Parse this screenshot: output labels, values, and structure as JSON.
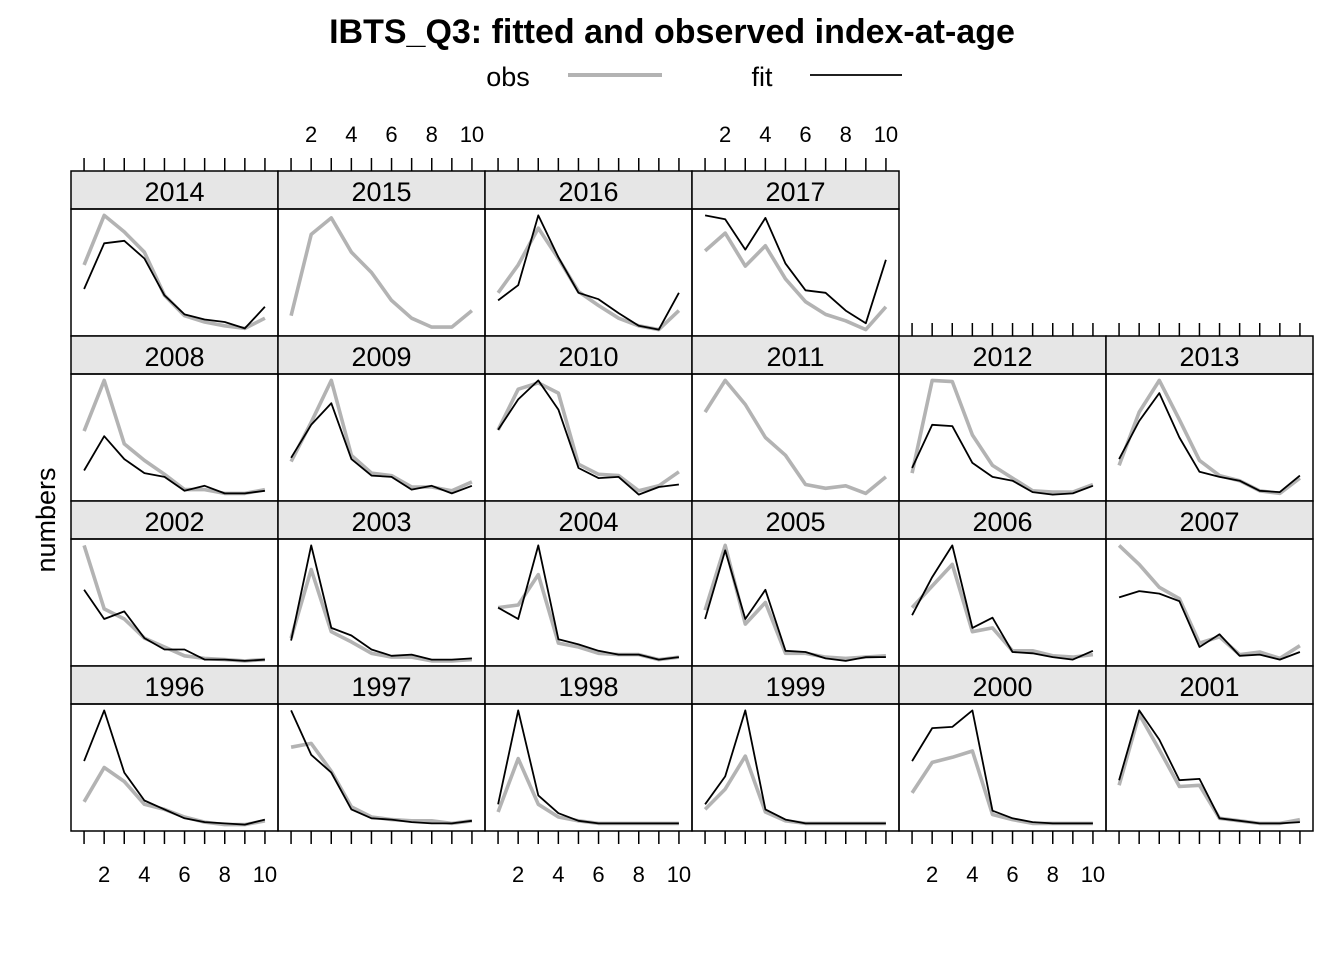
{
  "chart_data": {
    "type": "line",
    "title": "IBTS_Q3: fitted and observed index-at-age",
    "ylabel": "numbers",
    "xlabel": "",
    "x": [
      1,
      2,
      3,
      4,
      5,
      6,
      7,
      8,
      9,
      10
    ],
    "x_ticks": [
      "2",
      "4",
      "6",
      "8",
      "10"
    ],
    "x_tick_values": [
      2,
      4,
      6,
      8,
      10
    ],
    "xlim": [
      0.35,
      10.65
    ],
    "ylim": [
      0,
      1
    ],
    "colors": {
      "obs": "#b3b3b3",
      "fit": "#000000",
      "strip": "#e6e6e6"
    },
    "legend": {
      "placement": "top",
      "entries": [
        {
          "label": "obs",
          "color": "#b3b3b3"
        },
        {
          "label": "fit",
          "color": "#000000"
        }
      ]
    },
    "panels": [
      {
        "year": "2014",
        "row": 0,
        "col": 0,
        "obs": [
          0.56,
          0.95,
          0.82,
          0.66,
          0.32,
          0.16,
          0.11,
          0.08,
          0.06,
          0.14
        ],
        "fit": [
          0.37,
          0.73,
          0.75,
          0.61,
          0.32,
          0.17,
          0.13,
          0.11,
          0.06,
          0.23
        ]
      },
      {
        "year": "2015",
        "row": 0,
        "col": 1,
        "obs": [
          0.16,
          0.8,
          0.93,
          0.66,
          0.5,
          0.28,
          0.14,
          0.07,
          0.07,
          0.2
        ]
      },
      {
        "year": "2016",
        "row": 0,
        "col": 2,
        "obs": [
          0.34,
          0.56,
          0.85,
          0.61,
          0.35,
          0.24,
          0.14,
          0.08,
          0.05,
          0.2
        ],
        "fit": [
          0.28,
          0.4,
          0.95,
          0.62,
          0.34,
          0.29,
          0.18,
          0.08,
          0.05,
          0.34
        ]
      },
      {
        "year": "2017",
        "row": 0,
        "col": 3,
        "obs": [
          0.67,
          0.81,
          0.55,
          0.71,
          0.45,
          0.27,
          0.17,
          0.12,
          0.05,
          0.23
        ],
        "fit": [
          0.95,
          0.92,
          0.68,
          0.93,
          0.57,
          0.36,
          0.34,
          0.2,
          0.1,
          0.6
        ]
      },
      {
        "year": "2008",
        "row": 1,
        "col": 0,
        "obs": [
          0.55,
          0.95,
          0.45,
          0.32,
          0.21,
          0.09,
          0.09,
          0.06,
          0.06,
          0.09
        ],
        "fit": [
          0.24,
          0.51,
          0.33,
          0.22,
          0.19,
          0.08,
          0.12,
          0.06,
          0.06,
          0.08
        ]
      },
      {
        "year": "2009",
        "row": 1,
        "col": 1,
        "obs": [
          0.31,
          0.62,
          0.95,
          0.36,
          0.22,
          0.2,
          0.11,
          0.11,
          0.08,
          0.15
        ],
        "fit": [
          0.34,
          0.6,
          0.77,
          0.33,
          0.2,
          0.19,
          0.09,
          0.12,
          0.06,
          0.12
        ]
      },
      {
        "year": "2010",
        "row": 1,
        "col": 2,
        "obs": [
          0.56,
          0.88,
          0.93,
          0.85,
          0.29,
          0.21,
          0.2,
          0.08,
          0.12,
          0.23
        ],
        "fit": [
          0.56,
          0.8,
          0.95,
          0.72,
          0.26,
          0.18,
          0.19,
          0.05,
          0.11,
          0.13
        ]
      },
      {
        "year": "2011",
        "row": 1,
        "col": 3,
        "obs": [
          0.7,
          0.95,
          0.76,
          0.5,
          0.36,
          0.13,
          0.1,
          0.12,
          0.06,
          0.19
        ]
      },
      {
        "year": "2012",
        "row": 1,
        "col": 4,
        "obs": [
          0.22,
          0.95,
          0.94,
          0.52,
          0.28,
          0.18,
          0.08,
          0.07,
          0.07,
          0.13
        ],
        "fit": [
          0.26,
          0.6,
          0.59,
          0.3,
          0.19,
          0.16,
          0.07,
          0.05,
          0.06,
          0.12
        ]
      },
      {
        "year": "2013",
        "row": 1,
        "col": 5,
        "obs": [
          0.28,
          0.7,
          0.95,
          0.64,
          0.32,
          0.2,
          0.16,
          0.08,
          0.06,
          0.18
        ],
        "fit": [
          0.33,
          0.63,
          0.85,
          0.5,
          0.23,
          0.19,
          0.16,
          0.08,
          0.07,
          0.2
        ]
      },
      {
        "year": "2002",
        "row": 2,
        "col": 0,
        "obs": [
          0.95,
          0.45,
          0.37,
          0.22,
          0.15,
          0.08,
          0.06,
          0.05,
          0.04,
          0.05
        ],
        "fit": [
          0.6,
          0.37,
          0.43,
          0.22,
          0.13,
          0.13,
          0.05,
          0.05,
          0.04,
          0.05
        ]
      },
      {
        "year": "2003",
        "row": 2,
        "col": 1,
        "obs": [
          0.22,
          0.76,
          0.27,
          0.19,
          0.1,
          0.07,
          0.07,
          0.04,
          0.04,
          0.05
        ],
        "fit": [
          0.2,
          0.95,
          0.3,
          0.24,
          0.13,
          0.08,
          0.09,
          0.05,
          0.05,
          0.06
        ]
      },
      {
        "year": "2004",
        "row": 2,
        "col": 2,
        "obs": [
          0.46,
          0.48,
          0.72,
          0.18,
          0.15,
          0.1,
          0.09,
          0.09,
          0.05,
          0.07
        ],
        "fit": [
          0.46,
          0.37,
          0.95,
          0.21,
          0.17,
          0.12,
          0.09,
          0.09,
          0.05,
          0.07
        ]
      },
      {
        "year": "2005",
        "row": 2,
        "col": 3,
        "obs": [
          0.44,
          0.95,
          0.33,
          0.5,
          0.1,
          0.1,
          0.07,
          0.06,
          0.07,
          0.08
        ],
        "fit": [
          0.37,
          0.91,
          0.37,
          0.6,
          0.12,
          0.11,
          0.06,
          0.04,
          0.07,
          0.07
        ]
      },
      {
        "year": "2006",
        "row": 2,
        "col": 4,
        "obs": [
          0.46,
          0.63,
          0.8,
          0.27,
          0.3,
          0.12,
          0.12,
          0.08,
          0.07,
          0.09
        ],
        "fit": [
          0.4,
          0.7,
          0.95,
          0.3,
          0.38,
          0.11,
          0.1,
          0.07,
          0.05,
          0.12
        ]
      },
      {
        "year": "2007",
        "row": 2,
        "col": 5,
        "obs": [
          0.95,
          0.8,
          0.62,
          0.53,
          0.18,
          0.23,
          0.09,
          0.11,
          0.06,
          0.16
        ],
        "fit": [
          0.54,
          0.59,
          0.57,
          0.51,
          0.15,
          0.25,
          0.08,
          0.09,
          0.05,
          0.11
        ]
      },
      {
        "year": "1996",
        "row": 3,
        "col": 0,
        "obs": [
          0.23,
          0.5,
          0.39,
          0.21,
          0.17,
          0.11,
          0.07,
          0.05,
          0.05,
          0.08
        ],
        "fit": [
          0.55,
          0.95,
          0.46,
          0.24,
          0.17,
          0.1,
          0.07,
          0.06,
          0.05,
          0.09
        ]
      },
      {
        "year": "1997",
        "row": 3,
        "col": 1,
        "obs": [
          0.66,
          0.69,
          0.47,
          0.19,
          0.11,
          0.09,
          0.08,
          0.08,
          0.06,
          0.08
        ],
        "fit": [
          0.95,
          0.6,
          0.46,
          0.17,
          0.1,
          0.09,
          0.07,
          0.06,
          0.06,
          0.08
        ]
      },
      {
        "year": "1998",
        "row": 3,
        "col": 2,
        "obs": [
          0.15,
          0.57,
          0.21,
          0.11,
          0.08,
          0.06,
          0.06,
          0.06,
          0.06,
          0.06
        ],
        "fit": [
          0.21,
          0.95,
          0.28,
          0.14,
          0.08,
          0.06,
          0.06,
          0.06,
          0.06,
          0.06
        ]
      },
      {
        "year": "1999",
        "row": 3,
        "col": 3,
        "obs": [
          0.17,
          0.33,
          0.59,
          0.15,
          0.08,
          0.06,
          0.06,
          0.06,
          0.06,
          0.06
        ],
        "fit": [
          0.21,
          0.43,
          0.95,
          0.17,
          0.09,
          0.06,
          0.06,
          0.06,
          0.06,
          0.06
        ]
      },
      {
        "year": "2000",
        "row": 3,
        "col": 4,
        "obs": [
          0.3,
          0.54,
          0.58,
          0.63,
          0.13,
          0.09,
          0.06,
          0.06,
          0.06,
          0.06
        ],
        "fit": [
          0.55,
          0.81,
          0.82,
          0.95,
          0.16,
          0.1,
          0.07,
          0.06,
          0.06,
          0.06
        ]
      },
      {
        "year": "2001",
        "row": 3,
        "col": 5,
        "obs": [
          0.36,
          0.92,
          0.64,
          0.35,
          0.36,
          0.1,
          0.08,
          0.06,
          0.06,
          0.09
        ],
        "fit": [
          0.4,
          0.95,
          0.72,
          0.4,
          0.41,
          0.1,
          0.08,
          0.06,
          0.06,
          0.07
        ]
      }
    ]
  }
}
